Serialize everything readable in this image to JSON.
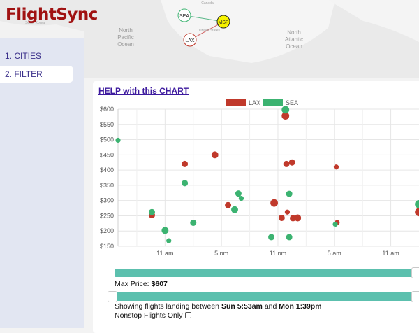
{
  "app": {
    "title": "FlightSync"
  },
  "map": {
    "labels": [
      "North Pacific Ocean",
      "North Atlantic Ocean",
      "Canada",
      "United States",
      "South Korea"
    ],
    "ocean_left": [
      "North",
      "Pacific",
      "Ocean"
    ],
    "ocean_right": [
      "North",
      "Atlantic",
      "Ocean"
    ],
    "country_top": "Canada",
    "country_mid": "United States",
    "country_left": "South Korea",
    "airports": [
      {
        "code": "SEA",
        "style": "origin"
      },
      {
        "code": "MSP",
        "style": "destination"
      },
      {
        "code": "LAX",
        "style": "origin"
      }
    ]
  },
  "nav": {
    "items": [
      {
        "label": "1. CITIES",
        "active": false
      },
      {
        "label": "2. FILTER",
        "active": true
      }
    ]
  },
  "panel": {
    "help_link": "HELP with this CHART"
  },
  "colors": {
    "lax": "#c0392b",
    "sea": "#3cb371",
    "slider": "#5cc0ae",
    "brand": "#a01212"
  },
  "chart_data": {
    "type": "scatter",
    "title": "",
    "xlabel": "",
    "ylabel": "",
    "legend_position": "top",
    "grid": true,
    "x_ticks": [
      "11 am",
      "5 pm",
      "11 pm",
      "5 am",
      "11 am"
    ],
    "y_ticks": [
      "$600",
      "$550",
      "$500",
      "$450",
      "$400",
      "$350",
      "$300",
      "$250",
      "$200",
      "$150"
    ],
    "ylim": [
      150,
      600
    ],
    "x_unit": "hours from Sun 6:00am",
    "xlim": [
      0,
      32
    ],
    "series": [
      {
        "name": "LAX",
        "color": "#c0392b",
        "points": [
          {
            "x": 3.6,
            "y": 252,
            "r": 1.0
          },
          {
            "x": 7.1,
            "y": 420,
            "r": 1.0
          },
          {
            "x": 10.3,
            "y": 450,
            "r": 1.1
          },
          {
            "x": 11.7,
            "y": 285,
            "r": 1.0
          },
          {
            "x": 16.6,
            "y": 292,
            "r": 1.2
          },
          {
            "x": 17.8,
            "y": 578,
            "r": 1.2
          },
          {
            "x": 17.4,
            "y": 243,
            "r": 1.0
          },
          {
            "x": 17.9,
            "y": 420,
            "r": 1.0
          },
          {
            "x": 18.5,
            "y": 425,
            "r": 1.0
          },
          {
            "x": 18.0,
            "y": 262,
            "r": 0.8
          },
          {
            "x": 18.6,
            "y": 242,
            "r": 1.0
          },
          {
            "x": 19.1,
            "y": 243,
            "r": 1.1
          },
          {
            "x": 23.2,
            "y": 410,
            "r": 0.8
          },
          {
            "x": 23.3,
            "y": 228,
            "r": 0.8
          },
          {
            "x": 32.0,
            "y": 262,
            "r": 1.3
          }
        ]
      },
      {
        "name": "SEA",
        "color": "#3cb371",
        "points": [
          {
            "x": 0.0,
            "y": 498,
            "r": 0.8
          },
          {
            "x": 3.6,
            "y": 262,
            "r": 1.0
          },
          {
            "x": 5.0,
            "y": 202,
            "r": 1.1
          },
          {
            "x": 5.4,
            "y": 168,
            "r": 0.8
          },
          {
            "x": 7.1,
            "y": 357,
            "r": 1.0
          },
          {
            "x": 8.0,
            "y": 227,
            "r": 1.0
          },
          {
            "x": 12.4,
            "y": 270,
            "r": 1.1
          },
          {
            "x": 12.8,
            "y": 323,
            "r": 1.0
          },
          {
            "x": 13.1,
            "y": 307,
            "r": 0.8
          },
          {
            "x": 16.3,
            "y": 180,
            "r": 1.0
          },
          {
            "x": 17.8,
            "y": 598,
            "r": 1.2
          },
          {
            "x": 18.2,
            "y": 322,
            "r": 1.0
          },
          {
            "x": 18.2,
            "y": 180,
            "r": 1.0
          },
          {
            "x": 23.1,
            "y": 222,
            "r": 0.8
          },
          {
            "x": 32.0,
            "y": 288,
            "r": 1.3
          }
        ]
      }
    ]
  },
  "filters": {
    "max_price_label": "Max Price:",
    "max_price_value": "$607",
    "max_price_fraction": 0.99,
    "time_range_fraction": [
      0.0,
      0.99
    ],
    "landing_prefix": "Showing flights landing between",
    "landing_start": "Sun 5:53am",
    "landing_and": "and",
    "landing_end": "Mon 1:39pm",
    "nonstop_label": "Nonstop Flights Only",
    "nonstop_checked": false
  }
}
